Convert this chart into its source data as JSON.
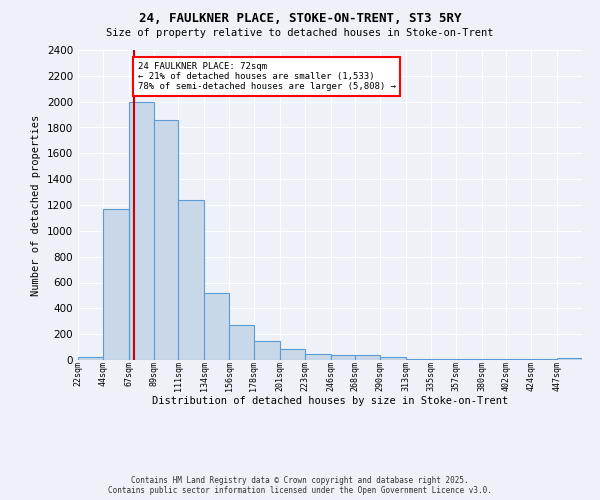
{
  "title1": "24, FAULKNER PLACE, STOKE-ON-TRENT, ST3 5RY",
  "title2": "Size of property relative to detached houses in Stoke-on-Trent",
  "xlabel": "Distribution of detached houses by size in Stoke-on-Trent",
  "ylabel": "Number of detached properties",
  "footer1": "Contains HM Land Registry data © Crown copyright and database right 2025.",
  "footer2": "Contains public sector information licensed under the Open Government Licence v3.0.",
  "annotation_line1": "24 FAULKNER PLACE: 72sqm",
  "annotation_line2": "← 21% of detached houses are smaller (1,533)",
  "annotation_line3": "78% of semi-detached houses are larger (5,808) →",
  "property_size": 72,
  "bin_edges": [
    22,
    44,
    67,
    89,
    111,
    134,
    156,
    178,
    201,
    223,
    246,
    268,
    290,
    313,
    335,
    357,
    380,
    402,
    424,
    447,
    469
  ],
  "bar_heights": [
    25,
    1170,
    2000,
    1860,
    1240,
    520,
    270,
    150,
    85,
    50,
    35,
    35,
    20,
    10,
    5,
    5,
    5,
    5,
    5,
    15
  ],
  "bar_color": "#c8d8e8",
  "bar_edge_color": "#5b9bd5",
  "red_line_color": "#cc0000",
  "background_color": "#eef2f8",
  "grid_color": "#ffffff",
  "ylim": [
    0,
    2400
  ],
  "yticks": [
    0,
    200,
    400,
    600,
    800,
    1000,
    1200,
    1400,
    1600,
    1800,
    2000,
    2200,
    2400
  ]
}
